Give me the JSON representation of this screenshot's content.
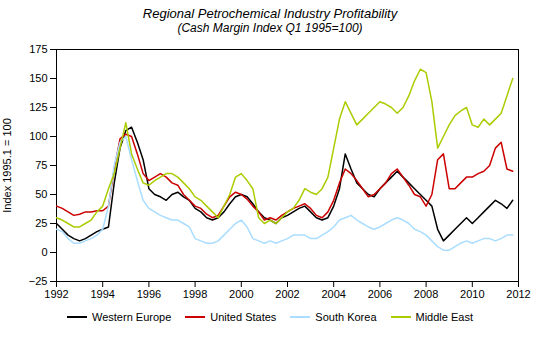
{
  "chart_data": {
    "type": "line",
    "title": "Regional Petrochemical Industry Profitability",
    "subtitle": "(Cash Margin Index Q1 1995=100)",
    "ylabel": "Index 1995.1 = 100",
    "xlim": [
      1992,
      2012
    ],
    "ylim": [
      -25,
      175
    ],
    "xticks": [
      1992,
      1994,
      1996,
      1998,
      2000,
      2002,
      2004,
      2006,
      2008,
      2010,
      2012
    ],
    "yticks": [
      -25,
      0,
      25,
      50,
      75,
      100,
      125,
      150,
      175
    ],
    "grid": false,
    "legend": "bottom",
    "x": [
      1992.0,
      1992.25,
      1992.5,
      1992.75,
      1993.0,
      1993.25,
      1993.5,
      1993.75,
      1994.0,
      1994.25,
      1994.5,
      1994.75,
      1995.0,
      1995.25,
      1995.5,
      1995.75,
      1996.0,
      1996.25,
      1996.5,
      1996.75,
      1997.0,
      1997.25,
      1997.5,
      1997.75,
      1998.0,
      1998.25,
      1998.5,
      1998.75,
      1999.0,
      1999.25,
      1999.5,
      1999.75,
      2000.0,
      2000.25,
      2000.5,
      2000.75,
      2001.0,
      2001.25,
      2001.5,
      2001.75,
      2002.0,
      2002.25,
      2002.5,
      2002.75,
      2003.0,
      2003.25,
      2003.5,
      2003.75,
      2004.0,
      2004.25,
      2004.5,
      2004.75,
      2005.0,
      2005.25,
      2005.5,
      2005.75,
      2006.0,
      2006.25,
      2006.5,
      2006.75,
      2007.0,
      2007.25,
      2007.5,
      2007.75,
      2008.0,
      2008.25,
      2008.5,
      2008.75,
      2009.0,
      2009.25,
      2009.5,
      2009.75,
      2010.0,
      2010.25,
      2010.5,
      2010.75,
      2011.0,
      2011.25,
      2011.5,
      2011.75
    ],
    "series": [
      {
        "name": "Western Europe",
        "color": "#000000",
        "values": [
          25,
          20,
          15,
          12,
          10,
          12,
          15,
          18,
          20,
          22,
          60,
          90,
          105,
          108,
          95,
          80,
          55,
          50,
          48,
          45,
          50,
          52,
          48,
          45,
          38,
          35,
          30,
          28,
          30,
          35,
          42,
          48,
          50,
          48,
          42,
          35,
          30,
          28,
          25,
          30,
          32,
          35,
          38,
          40,
          35,
          30,
          28,
          30,
          40,
          55,
          85,
          72,
          60,
          55,
          50,
          48,
          55,
          60,
          65,
          70,
          65,
          60,
          55,
          50,
          45,
          40,
          20,
          10,
          15,
          20,
          25,
          30,
          25,
          30,
          35,
          40,
          45,
          42,
          38,
          45
        ]
      },
      {
        "name": "United States",
        "color": "#cc0000",
        "values": [
          40,
          38,
          35,
          32,
          33,
          35,
          35,
          36,
          36,
          40,
          72,
          98,
          102,
          100,
          85,
          68,
          62,
          65,
          68,
          65,
          60,
          58,
          50,
          45,
          40,
          38,
          33,
          30,
          32,
          40,
          48,
          52,
          50,
          46,
          40,
          35,
          28,
          30,
          28,
          32,
          35,
          38,
          40,
          42,
          38,
          32,
          30,
          35,
          45,
          60,
          72,
          68,
          62,
          55,
          48,
          50,
          55,
          60,
          68,
          72,
          65,
          58,
          50,
          48,
          40,
          50,
          80,
          85,
          55,
          55,
          60,
          65,
          65,
          68,
          70,
          75,
          90,
          95,
          72,
          70
        ]
      },
      {
        "name": "South Korea",
        "color": "#aaddff",
        "values": [
          20,
          18,
          12,
          8,
          8,
          10,
          12,
          15,
          20,
          40,
          75,
          95,
          100,
          80,
          62,
          45,
          38,
          35,
          32,
          30,
          28,
          28,
          25,
          22,
          12,
          10,
          8,
          8,
          10,
          15,
          20,
          25,
          28,
          22,
          12,
          10,
          8,
          10,
          8,
          10,
          12,
          15,
          15,
          15,
          12,
          12,
          15,
          18,
          22,
          28,
          30,
          32,
          28,
          25,
          22,
          20,
          22,
          25,
          28,
          30,
          28,
          25,
          20,
          18,
          15,
          10,
          5,
          2,
          2,
          5,
          8,
          10,
          8,
          10,
          12,
          12,
          10,
          12,
          15,
          15
        ]
      },
      {
        "name": "Middle East",
        "color": "#aacc00",
        "values": [
          30,
          28,
          25,
          22,
          22,
          25,
          28,
          35,
          40,
          55,
          68,
          90,
          112,
          85,
          72,
          60,
          58,
          62,
          65,
          68,
          68,
          65,
          60,
          55,
          48,
          45,
          40,
          35,
          30,
          40,
          50,
          65,
          68,
          62,
          55,
          30,
          25,
          28,
          25,
          30,
          35,
          38,
          45,
          55,
          52,
          50,
          55,
          65,
          90,
          115,
          130,
          120,
          110,
          115,
          120,
          125,
          130,
          128,
          125,
          120,
          125,
          135,
          148,
          158,
          155,
          130,
          90,
          100,
          110,
          118,
          122,
          125,
          110,
          108,
          115,
          110,
          115,
          120,
          135,
          150
        ]
      }
    ]
  }
}
